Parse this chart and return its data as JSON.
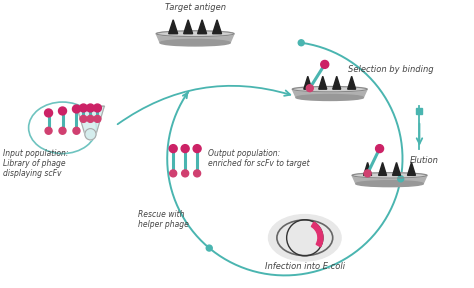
{
  "background_color": "#ffffff",
  "labels": {
    "target_antigen": "Target antigen",
    "selection": "Selection by binding",
    "elution": "Elution",
    "infection": "Infection into E.coli",
    "rescue": "Rescue with\nhelper phage",
    "output": "Output population:\nenriched for scFv to target",
    "input": "Input population:\nLibrary of phage\ndisplaying scFv"
  },
  "teal": "#4ab5b0",
  "dark_teal": "#2a9590",
  "plate_top": "#c8c8c8",
  "plate_mid": "#a8a8a8",
  "plate_bot": "#888888",
  "spike_color": "#2a2a2a",
  "text_color": "#444444",
  "pink": "#d04070",
  "magenta": "#cc2266",
  "phage_teal": "#50b8b8",
  "cell_gray": "#e0e0e0",
  "cell_outline": "#888888",
  "arrow_teal": "#4ab5b0",
  "beaker_gray": "#b0b0b0",
  "beaker_fill": "#d8eeee"
}
